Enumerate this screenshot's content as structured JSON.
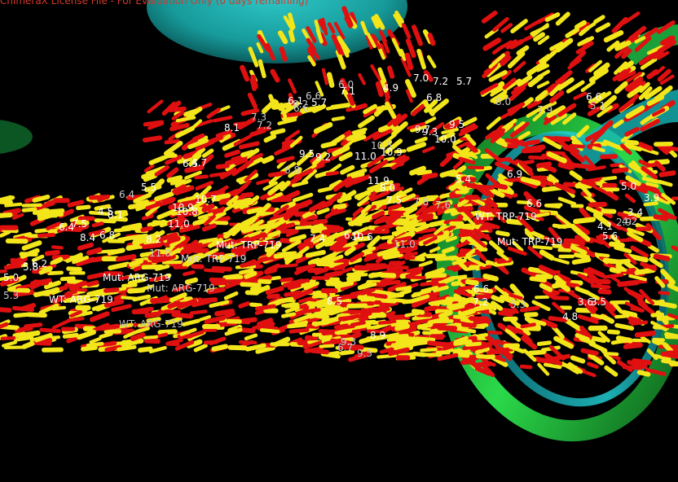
{
  "viewer": {
    "license_banner": "ChimeraX License File - For Evaluation Only (0 days remaining)"
  },
  "scene": {
    "background": "#000000",
    "surface_colors": [
      "#1fa3a3",
      "#1ec7c7",
      "#1aa033",
      "#22d03a"
    ],
    "stick_colors": [
      "#e01010",
      "#f2e61a"
    ],
    "labels": {
      "residue_labels": [
        "WT: ARG-719",
        "WT: ARG-719",
        "Mut: TRP-719",
        "Mut: TRP-719",
        "Mut: ARG-719",
        "Mut: ARG-719",
        "WT: TRP-719",
        "Mut: TRP-719"
      ],
      "distance_labels": [
        "6.6",
        "8.2",
        "6.1",
        "6.6",
        "5.7",
        "6.0",
        "7.1",
        "4.9",
        "7.2",
        "7.0",
        "5.7",
        "6.8",
        "8.0",
        "7.9",
        "6.6",
        "5.1",
        "8.1",
        "7.3",
        "7.2",
        "9.7",
        "9.3",
        "10.5",
        "10.9",
        "11.9",
        "8.0",
        "7.5",
        "7.8",
        "7.6",
        "10.0",
        "5.4",
        "5.0",
        "6.6",
        "6.9",
        "9.5",
        "6.4",
        "5.5",
        "6.5",
        "4.7",
        "6.8",
        "9.5",
        "9.2",
        "11.0",
        "10.7",
        "10.9",
        "4.5",
        "8.1",
        "6.4",
        "7.5",
        "6.8",
        "8.4",
        "8.2",
        "10.8",
        "11.0",
        "11.0",
        "6.2",
        "5.0",
        "5.8",
        "5.3",
        "6.0",
        "8.5",
        "7.4",
        "10.6",
        "11.0",
        "8.9",
        "9.3",
        "6.7",
        "9.5",
        "6.6",
        "7.2",
        "5.3",
        "3.6",
        "3.5",
        "4.8",
        "4.1",
        "4.2",
        "2.9",
        "3.9",
        "3.4",
        "5.6"
      ]
    }
  }
}
